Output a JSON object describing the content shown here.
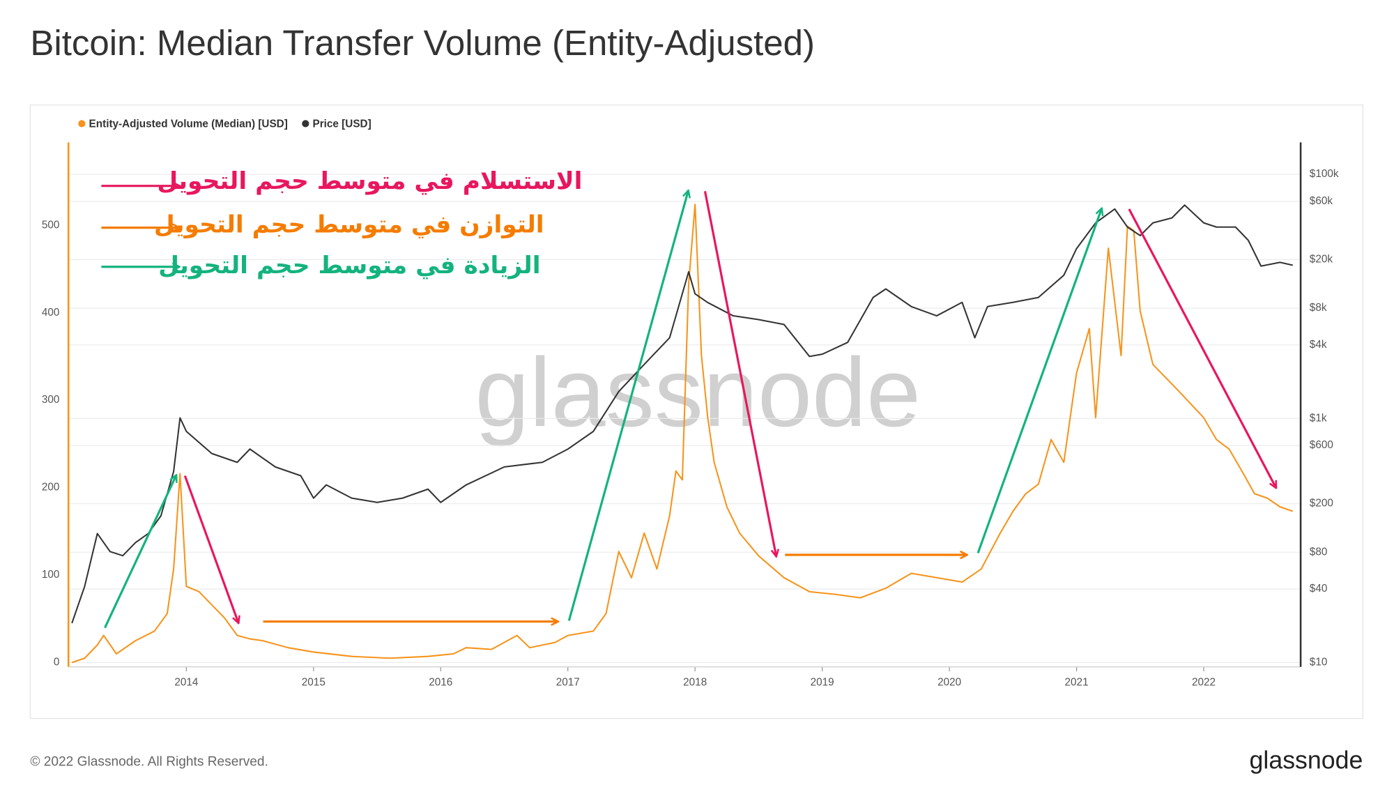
{
  "chart_data": {
    "type": "line",
    "title": "Bitcoin: Median Transfer Volume (Entity-Adjusted)",
    "watermark": "glassnode",
    "annotations": [
      {
        "text": "الاستسلام في متوسط حجم التحويل",
        "color": "#e8175d"
      },
      {
        "text": "التوازن في متوسط حجم التحويل",
        "color": "#f57c00"
      },
      {
        "text": "الزيادة في متوسط حجم التحويل",
        "color": "#14b37d"
      }
    ],
    "xlim": [
      2013.08,
      2022.755
    ],
    "xticks": [
      2014,
      2015,
      2016,
      2017,
      2018,
      2019,
      2020,
      2021,
      2022
    ],
    "ylim": [
      -5,
      595
    ],
    "yticks": [
      0,
      100,
      200,
      300,
      400,
      500
    ],
    "y2lim": [
      9.2,
      183000
    ],
    "y2log": true,
    "y2ticks": [
      {
        "value": 10,
        "label": "$10"
      },
      {
        "value": 40,
        "label": "$40"
      },
      {
        "value": 80,
        "label": "$80"
      },
      {
        "value": 200,
        "label": "$200"
      },
      {
        "value": 600,
        "label": "$600"
      },
      {
        "value": 1000,
        "label": "$1k"
      },
      {
        "value": 4000,
        "label": "$4k"
      },
      {
        "value": 8000,
        "label": "$8k"
      },
      {
        "value": 20000,
        "label": "$20k"
      },
      {
        "value": 60000,
        "label": "$60k"
      },
      {
        "value": 100000,
        "label": "$100k"
      }
    ],
    "grid": true,
    "series": [
      {
        "name": "Entity-Adjusted Volume (Median) [USD]",
        "color": "#f7931a",
        "x": [
          2013.1,
          2013.2,
          2013.3,
          2013.35,
          2013.45,
          2013.6,
          2013.75,
          2013.85,
          2013.9,
          2013.95,
          2014.0,
          2014.1,
          2014.2,
          2014.3,
          2014.4,
          2014.5,
          2014.6,
          2014.8,
          2015.0,
          2015.3,
          2015.6,
          2015.9,
          2016.1,
          2016.2,
          2016.4,
          2016.6,
          2016.7,
          2016.9,
          2017.0,
          2017.2,
          2017.3,
          2017.4,
          2017.5,
          2017.6,
          2017.7,
          2017.8,
          2017.85,
          2017.9,
          2017.95,
          2018.0,
          2018.05,
          2018.1,
          2018.15,
          2018.25,
          2018.35,
          2018.5,
          2018.7,
          2018.9,
          2019.1,
          2019.3,
          2019.5,
          2019.7,
          2019.9,
          2020.1,
          2020.25,
          2020.4,
          2020.5,
          2020.6,
          2020.7,
          2020.8,
          2020.9,
          2021.0,
          2021.1,
          2021.15,
          2021.25,
          2021.35,
          2021.4,
          2021.45,
          2021.5,
          2021.6,
          2021.8,
          2022.0,
          2022.1,
          2022.2,
          2022.3,
          2022.4,
          2022.5,
          2022.6,
          2022.7
        ],
        "values": [
          0,
          5,
          20,
          31,
          10,
          25,
          36,
          56,
          107,
          216,
          87,
          81,
          66,
          51,
          31,
          27,
          25,
          17,
          12,
          7,
          5,
          7,
          10,
          17,
          15,
          31,
          17,
          23,
          31,
          36,
          56,
          127,
          97,
          148,
          107,
          168,
          219,
          209,
          433,
          524,
          351,
          280,
          229,
          178,
          148,
          122,
          97,
          81,
          78,
          74,
          85,
          102,
          97,
          92,
          107,
          148,
          173,
          193,
          204,
          255,
          229,
          331,
          382,
          280,
          474,
          351,
          499,
          494,
          402,
          341,
          311,
          280,
          255,
          244,
          219,
          193,
          188,
          178,
          173
        ]
      },
      {
        "name": "Price [USD]",
        "color": "#333333",
        "axis": "y2",
        "x": [
          2013.1,
          2013.2,
          2013.3,
          2013.4,
          2013.5,
          2013.6,
          2013.7,
          2013.8,
          2013.9,
          2013.95,
          2014.0,
          2014.2,
          2014.4,
          2014.5,
          2014.7,
          2014.9,
          2015.0,
          2015.1,
          2015.3,
          2015.5,
          2015.7,
          2015.9,
          2016.0,
          2016.2,
          2016.5,
          2016.8,
          2017.0,
          2017.2,
          2017.4,
          2017.6,
          2017.8,
          2017.95,
          2018.0,
          2018.1,
          2018.3,
          2018.5,
          2018.7,
          2018.9,
          2019.0,
          2019.2,
          2019.4,
          2019.5,
          2019.7,
          2019.9,
          2020.1,
          2020.2,
          2020.3,
          2020.5,
          2020.7,
          2020.9,
          2021.0,
          2021.15,
          2021.3,
          2021.4,
          2021.5,
          2021.6,
          2021.75,
          2021.85,
          2022.0,
          2022.1,
          2022.25,
          2022.35,
          2022.45,
          2022.6,
          2022.7
        ],
        "values": [
          21,
          42,
          114,
          81,
          75,
          96,
          114,
          159,
          367,
          1010,
          783,
          516,
          437,
          561,
          400,
          339,
          222,
          285,
          222,
          205,
          222,
          263,
          205,
          285,
          400,
          437,
          561,
          783,
          1660,
          2770,
          4580,
          15900,
          10500,
          8900,
          6930,
          6450,
          5880,
          3220,
          3360,
          4200,
          9800,
          11500,
          8260,
          6930,
          8940,
          4580,
          8260,
          8940,
          9800,
          14900,
          24600,
          40000,
          52000,
          37000,
          31500,
          40000,
          44000,
          56000,
          40000,
          37000,
          37000,
          28800,
          17700,
          19000,
          18000
        ]
      }
    ]
  },
  "footer": {
    "copyright": "© 2022 Glassnode. All Rights Reserved.",
    "logo": "glassnode"
  }
}
